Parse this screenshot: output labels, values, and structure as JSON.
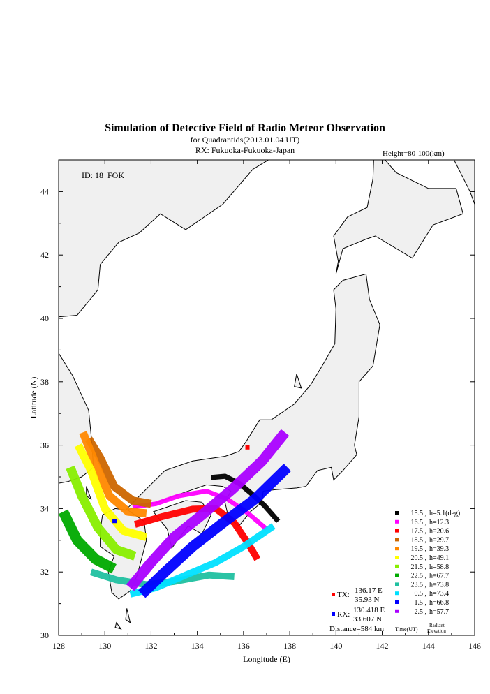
{
  "chart_data": {
    "type": "scatter",
    "title": "Simulation of Detective Field of Radio Meteor Observation",
    "subtitle": "for Quadrantids(2013.01.04 UT)",
    "receiver_line": "RX: Fukuoka-Fukuoka-Japan",
    "height_label": "Height=80-100(km)",
    "id_label": "ID: 18_FOK",
    "xlabel": "Longitude (E)",
    "ylabel": "Latitude (N)",
    "xlim": [
      128,
      146
    ],
    "ylim": [
      30,
      45
    ],
    "x_ticks": [
      128,
      130,
      132,
      134,
      136,
      138,
      140,
      142,
      144,
      146
    ],
    "y_ticks": [
      30,
      32,
      34,
      36,
      38,
      40,
      42,
      44
    ],
    "tx": {
      "label": "TX:",
      "lon_text": "136.17 E",
      "lat_text": "35.93 N",
      "lon": 136.17,
      "lat": 35.93,
      "color": "#ff0000"
    },
    "rx": {
      "label": "RX:",
      "lon_text": "130.418 E",
      "lat_text": "33.607 N",
      "lon": 130.418,
      "lat": 33.607,
      "color": "#0000ff"
    },
    "distance": "Distance=584 km",
    "legend_footer": {
      "time": "Time(UT)",
      "radiant_1": "Radiant",
      "radiant_2": "Elevation"
    },
    "series": [
      {
        "time": "15.5",
        "h": "h=5.1(deg)",
        "color": "#000000",
        "path": [
          [
            134.6,
            34.98
          ],
          [
            135.2,
            35.02
          ],
          [
            135.8,
            34.8
          ],
          [
            136.3,
            34.5
          ],
          [
            136.9,
            34.1
          ],
          [
            137.5,
            33.6
          ]
        ],
        "width": 0.22
      },
      {
        "time": "16.5",
        "h": "h=12.3",
        "color": "#ff00ff",
        "path": [
          [
            131.2,
            34.05
          ],
          [
            132.2,
            34.15
          ],
          [
            133.2,
            34.4
          ],
          [
            134.4,
            34.55
          ],
          [
            135.3,
            34.3
          ],
          [
            136.2,
            33.85
          ],
          [
            137.0,
            33.35
          ]
        ],
        "width": 0.2
      },
      {
        "time": "17.5",
        "h": "h=20.6",
        "color": "#ff0000",
        "path": [
          [
            131.3,
            33.5
          ],
          [
            132.5,
            33.75
          ],
          [
            133.8,
            33.98
          ],
          [
            134.8,
            34.0
          ],
          [
            135.6,
            33.55
          ],
          [
            136.2,
            32.9
          ],
          [
            136.6,
            32.4
          ]
        ],
        "width": 0.3
      },
      {
        "time": "18.5",
        "h": "h=29.7",
        "color": "#cc6600",
        "path": [
          [
            129.3,
            36.2
          ],
          [
            129.8,
            35.6
          ],
          [
            130.4,
            34.7
          ],
          [
            131.2,
            34.25
          ],
          [
            132.0,
            34.15
          ]
        ],
        "width": 0.35
      },
      {
        "time": "19.5",
        "h": "h=39.3",
        "color": "#ff8800",
        "path": [
          [
            129.05,
            36.4
          ],
          [
            129.6,
            35.4
          ],
          [
            130.2,
            34.4
          ],
          [
            131.0,
            33.9
          ],
          [
            131.8,
            33.85
          ]
        ],
        "width": 0.35
      },
      {
        "time": "20.5",
        "h": "h=49.1",
        "color": "#ffff00",
        "path": [
          [
            128.85,
            36.0
          ],
          [
            129.4,
            35.2
          ],
          [
            130.0,
            34.0
          ],
          [
            130.8,
            33.3
          ],
          [
            131.8,
            33.1
          ]
        ],
        "width": 0.35
      },
      {
        "time": "21.5",
        "h": "h=58.8",
        "color": "#88ee00",
        "path": [
          [
            128.5,
            35.3
          ],
          [
            129.0,
            34.4
          ],
          [
            129.7,
            33.4
          ],
          [
            130.5,
            32.7
          ],
          [
            131.3,
            32.5
          ]
        ],
        "width": 0.4
      },
      {
        "time": "22.5",
        "h": "h=67.7",
        "color": "#00aa00",
        "path": [
          [
            128.2,
            33.9
          ],
          [
            128.8,
            33.0
          ],
          [
            129.6,
            32.4
          ],
          [
            130.4,
            32.1
          ]
        ],
        "width": 0.45
      },
      {
        "time": "23.5",
        "h": "h=73.8",
        "color": "#20c0a0",
        "path": [
          [
            129.4,
            32.0
          ],
          [
            130.5,
            31.75
          ],
          [
            131.8,
            31.6
          ],
          [
            133.0,
            31.7
          ],
          [
            134.5,
            31.9
          ],
          [
            135.6,
            31.85
          ]
        ],
        "width": 0.3
      },
      {
        "time": "0.5",
        "h": "h=73.4",
        "color": "#00e0ff",
        "path": [
          [
            131.1,
            31.3
          ],
          [
            132.2,
            31.5
          ],
          [
            133.5,
            31.9
          ],
          [
            134.8,
            32.3
          ],
          [
            136.0,
            32.8
          ],
          [
            137.3,
            33.45
          ]
        ],
        "width": 0.3
      },
      {
        "time": "1.5",
        "h": "h=66.8",
        "color": "#0000ff",
        "path": [
          [
            131.6,
            31.3
          ],
          [
            132.6,
            32.0
          ],
          [
            133.8,
            32.8
          ],
          [
            135.2,
            33.6
          ],
          [
            136.5,
            34.3
          ],
          [
            137.9,
            35.3
          ]
        ],
        "width": 0.45
      },
      {
        "time": "2.5",
        "h": "h=57.7",
        "color": "#aa00ff",
        "path": [
          [
            131.1,
            31.5
          ],
          [
            132.0,
            32.3
          ],
          [
            133.0,
            33.1
          ],
          [
            134.2,
            33.8
          ],
          [
            135.5,
            34.6
          ],
          [
            136.8,
            35.5
          ],
          [
            137.8,
            36.4
          ]
        ],
        "width": 0.45
      }
    ]
  }
}
